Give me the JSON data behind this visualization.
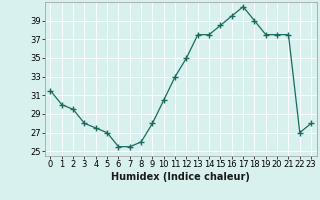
{
  "x": [
    0,
    1,
    2,
    3,
    4,
    5,
    6,
    7,
    8,
    9,
    10,
    11,
    12,
    13,
    14,
    15,
    16,
    17,
    18,
    19,
    20,
    21,
    22,
    23
  ],
  "y": [
    31.5,
    30.0,
    29.5,
    28.0,
    27.5,
    27.0,
    25.5,
    25.5,
    26.0,
    28.0,
    30.5,
    33.0,
    35.0,
    37.5,
    37.5,
    38.5,
    39.5,
    40.5,
    39.0,
    37.5,
    37.5,
    37.5,
    27.0,
    28.0
  ],
  "xlabel": "Humidex (Indice chaleur)",
  "xlim": [
    -0.5,
    23.5
  ],
  "ylim": [
    24.5,
    41.0
  ],
  "yticks": [
    25,
    27,
    29,
    31,
    33,
    35,
    37,
    39
  ],
  "xticks": [
    0,
    1,
    2,
    3,
    4,
    5,
    6,
    7,
    8,
    9,
    10,
    11,
    12,
    13,
    14,
    15,
    16,
    17,
    18,
    19,
    20,
    21,
    22,
    23
  ],
  "line_color": "#1a6b5e",
  "marker": "+",
  "bg_color": "#d8f0ee",
  "grid_color": "#b8d8d4",
  "label_fontsize": 7,
  "tick_fontsize": 6
}
